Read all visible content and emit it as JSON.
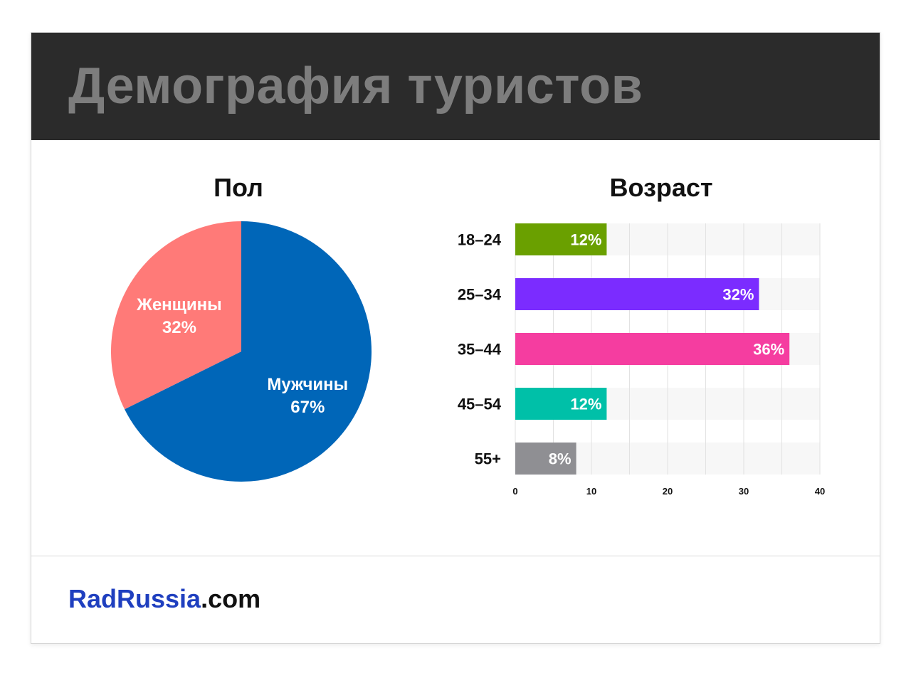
{
  "header": {
    "title": "Демография туристов"
  },
  "footer": {
    "brand_name": "RadRussia",
    "brand_tld": ".com",
    "brand_color": "#1f3fbf"
  },
  "chart_data": [
    {
      "type": "pie",
      "title": "Пол",
      "slices": [
        {
          "label": "Мужчины",
          "value": 67,
          "value_label": "67%",
          "color": "#0066b8"
        },
        {
          "label": "Женщины",
          "value": 32,
          "value_label": "32%",
          "color": "#ff7a78"
        }
      ]
    },
    {
      "type": "bar",
      "orientation": "horizontal",
      "title": "Возраст",
      "categories": [
        "18–24",
        "25–34",
        "35–44",
        "45–54",
        "55+"
      ],
      "values": [
        12,
        32,
        36,
        12,
        8
      ],
      "value_labels": [
        "12%",
        "32%",
        "36%",
        "12%",
        "8%"
      ],
      "colors": [
        "#6aa000",
        "#7b2cff",
        "#f53da0",
        "#00c0a8",
        "#8f8f93"
      ],
      "xlim": [
        0,
        40
      ],
      "xticks": [
        0,
        10,
        20,
        30,
        40
      ],
      "xtick_labels": [
        "0",
        "10",
        "20",
        "30",
        "40"
      ],
      "grid": true
    }
  ]
}
